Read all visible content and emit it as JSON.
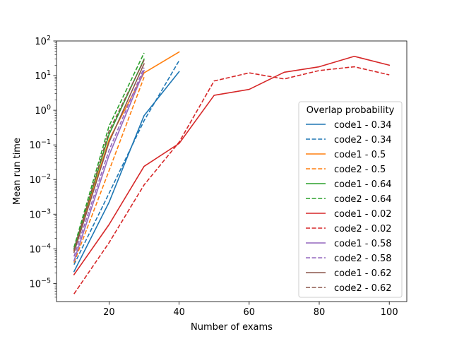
{
  "chart_data": {
    "type": "line",
    "title": "",
    "xlabel": "Number of exams",
    "ylabel": "Mean run time",
    "xlim": [
      5,
      105
    ],
    "ylim": [
      3e-06,
      100
    ],
    "yscale": "log",
    "grid": false,
    "x_ticks": [
      {
        "value": 20,
        "label": "20"
      },
      {
        "value": 40,
        "label": "40"
      },
      {
        "value": 60,
        "label": "60"
      },
      {
        "value": 80,
        "label": "80"
      },
      {
        "value": 100,
        "label": "100"
      }
    ],
    "y_ticks": [
      {
        "exp": -5,
        "base": "10",
        "sup": "−5"
      },
      {
        "exp": -4,
        "base": "10",
        "sup": "−4"
      },
      {
        "exp": -3,
        "base": "10",
        "sup": "−3"
      },
      {
        "exp": -2,
        "base": "10",
        "sup": "−2"
      },
      {
        "exp": -1,
        "base": "10",
        "sup": "−1"
      },
      {
        "exp": 0,
        "base": "10",
        "sup": "0"
      },
      {
        "exp": 1,
        "base": "10",
        "sup": "1"
      },
      {
        "exp": 2,
        "base": "10",
        "sup": "2"
      }
    ],
    "legend": {
      "title": "Overlap probability",
      "placement": "center-right"
    },
    "series": [
      {
        "name": "code1 - 0.34",
        "color": "#1f77b4",
        "dash": "solid",
        "x": [
          10,
          20,
          30,
          40
        ],
        "y": [
          2.2e-05,
          0.0022,
          0.7,
          13
        ]
      },
      {
        "name": "code2 - 0.34",
        "color": "#1f77b4",
        "dash": "dashed",
        "x": [
          10,
          20,
          30,
          40
        ],
        "y": [
          3.5e-05,
          0.004,
          0.5,
          27
        ]
      },
      {
        "name": "code1 - 0.5",
        "color": "#ff7f0e",
        "dash": "solid",
        "x": [
          10,
          20,
          30,
          40
        ],
        "y": [
          9e-05,
          0.14,
          12,
          48
        ]
      },
      {
        "name": "code2 - 0.5",
        "color": "#ff7f0e",
        "dash": "dashed",
        "x": [
          10,
          20,
          30
        ],
        "y": [
          4e-05,
          0.018,
          9
        ]
      },
      {
        "name": "code1 - 0.64",
        "color": "#2ca02c",
        "dash": "solid",
        "x": [
          10,
          20,
          30
        ],
        "y": [
          0.0001,
          0.2,
          30
        ]
      },
      {
        "name": "code2 - 0.64",
        "color": "#2ca02c",
        "dash": "dashed",
        "x": [
          10,
          20,
          30
        ],
        "y": [
          0.00011,
          0.35,
          45
        ]
      },
      {
        "name": "code1 - 0.02",
        "color": "#d62728",
        "dash": "solid",
        "x": [
          10,
          20,
          30,
          40,
          50,
          60,
          70,
          80,
          90,
          100
        ],
        "y": [
          1.8e-05,
          0.0005,
          0.024,
          0.11,
          2.7,
          4,
          12.5,
          18,
          36,
          20
        ]
      },
      {
        "name": "code2 - 0.02",
        "color": "#d62728",
        "dash": "dashed",
        "x": [
          10,
          20,
          30,
          40,
          50,
          60,
          70,
          80,
          90,
          100
        ],
        "y": [
          5e-06,
          0.00015,
          0.007,
          0.12,
          7,
          12,
          8,
          14,
          18,
          10.5
        ]
      },
      {
        "name": "code1 - 0.58",
        "color": "#9467bd",
        "dash": "solid",
        "x": [
          10,
          20,
          30
        ],
        "y": [
          4.5e-05,
          0.05,
          14
        ]
      },
      {
        "name": "code2 - 0.58",
        "color": "#9467bd",
        "dash": "dashed",
        "x": [
          10,
          20,
          30
        ],
        "y": [
          6e-05,
          0.07,
          17
        ]
      },
      {
        "name": "code1 - 0.62",
        "color": "#8c564b",
        "dash": "solid",
        "x": [
          10,
          20,
          30
        ],
        "y": [
          8e-05,
          0.12,
          22
        ]
      },
      {
        "name": "code2 - 0.62",
        "color": "#8c564b",
        "dash": "dashed",
        "x": [
          10,
          20,
          30
        ],
        "y": [
          9e-05,
          0.25,
          28
        ]
      }
    ]
  }
}
